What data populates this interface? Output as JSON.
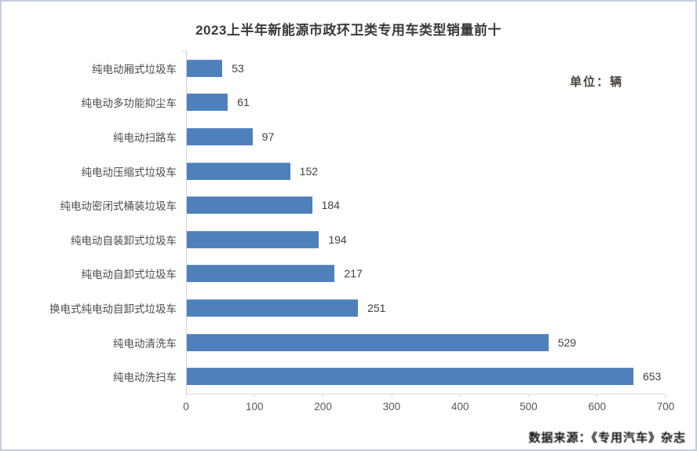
{
  "page": {
    "unit_label": "单位：辆",
    "source_label": "数据来源：《专用汽车》杂志"
  },
  "chart_data": {
    "type": "bar",
    "orientation": "horizontal",
    "title": "2023上半年新能源市政环卫类专用车类型销量前十",
    "unit": "辆",
    "categories": [
      "纯电动厢式垃圾车",
      "纯电动多功能抑尘车",
      "纯电动扫路车",
      "纯电动压缩式垃圾车",
      "纯电动密闭式桶装垃圾车",
      "纯电动自装卸式垃圾车",
      "纯电动自卸式垃圾车",
      "换电式纯电动自卸式垃圾车",
      "纯电动清洗车",
      "纯电动洗扫车"
    ],
    "values": [
      53,
      61,
      97,
      152,
      184,
      194,
      217,
      251,
      529,
      653
    ],
    "xlabel": "",
    "ylabel": "",
    "xlim": [
      0,
      700
    ],
    "x_ticks": [
      0,
      100,
      200,
      300,
      400,
      500,
      600,
      700
    ],
    "bar_color": "#4e80bc",
    "grid": false,
    "value_labels": true,
    "legend": null
  }
}
